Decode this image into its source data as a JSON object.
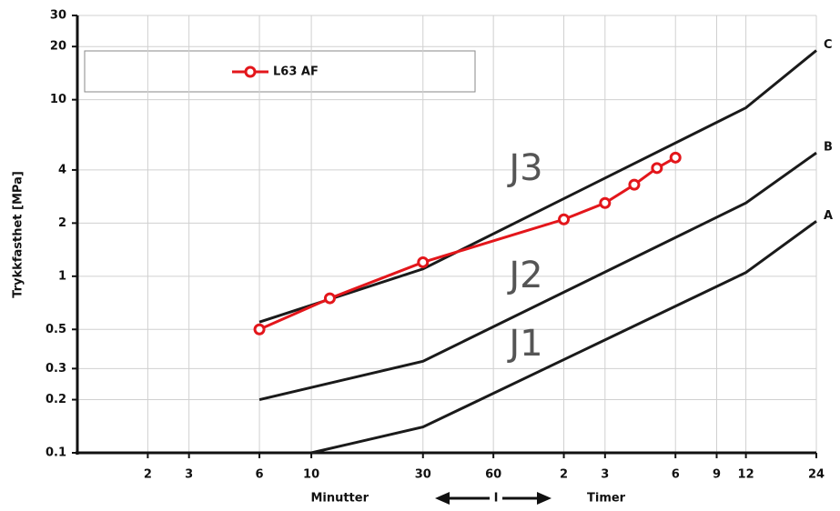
{
  "chart_data": {
    "type": "line",
    "ylabel": "Trykkfasthet [MPa]",
    "xlabel_left": "Minutter",
    "xlabel_center": "I",
    "xlabel_right": "Timer",
    "annotations": [
      "J3",
      "J2",
      "J1"
    ],
    "xscale": "log",
    "yscale": "log",
    "grid": true,
    "xlim": [
      1,
      1440
    ],
    "ylim": [
      0.1,
      30
    ],
    "xticks": [
      2,
      3,
      6,
      10,
      30,
      60,
      {
        "value": 120,
        "label": "2"
      },
      {
        "value": 180,
        "label": "3"
      },
      {
        "value": 360,
        "label": "6"
      },
      {
        "value": 540,
        "label": "9"
      },
      {
        "value": 720,
        "label": "12"
      },
      {
        "value": 1440,
        "label": "24"
      }
    ],
    "yticks": [
      0.1,
      0.2,
      0.3,
      0.5,
      1,
      2,
      4,
      10,
      20,
      30
    ],
    "series": [
      {
        "name": "L63 AF",
        "color": "#e3161b",
        "marker": "circle",
        "x": [
          6,
          12,
          30,
          120,
          180,
          240,
          300,
          360
        ],
        "values": [
          0.5,
          0.75,
          1.2,
          2.1,
          2.6,
          3.3,
          4.1,
          4.7
        ]
      },
      {
        "name": "C",
        "color": "#1a1a1a",
        "x": [
          6,
          30,
          720,
          1440
        ],
        "values": [
          0.55,
          1.1,
          9,
          19
        ]
      },
      {
        "name": "B",
        "color": "#1a1a1a",
        "x": [
          6,
          30,
          720,
          1440
        ],
        "values": [
          0.2,
          0.33,
          2.6,
          5
        ]
      },
      {
        "name": "A",
        "color": "#1a1a1a",
        "x": [
          10,
          30,
          720,
          1440
        ],
        "values": [
          0.1,
          0.14,
          1.05,
          2.05
        ]
      }
    ]
  }
}
